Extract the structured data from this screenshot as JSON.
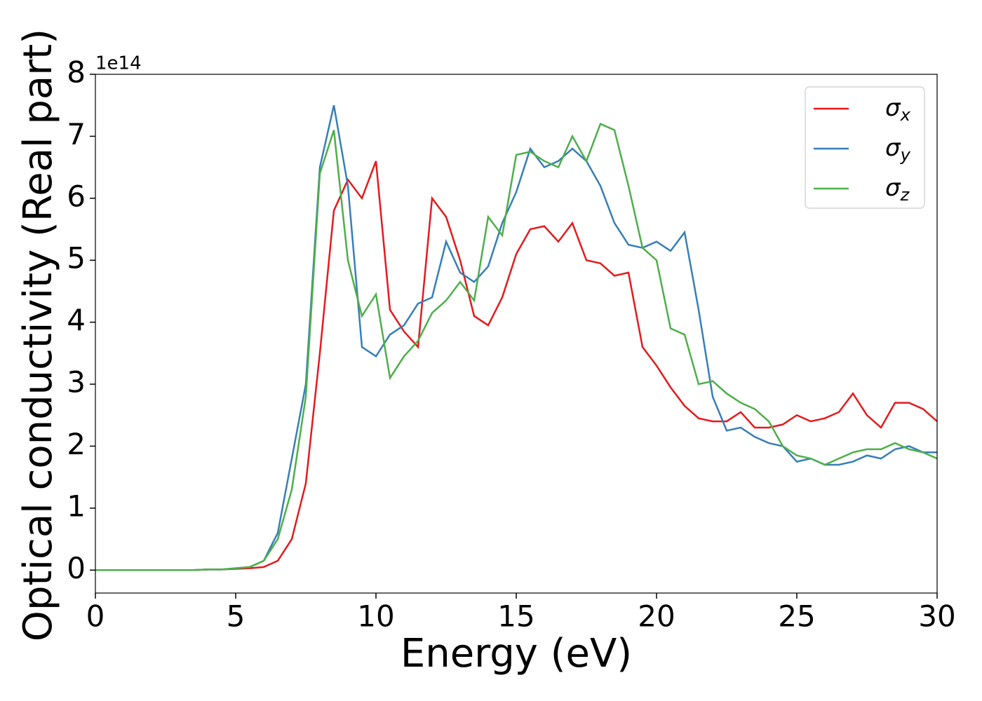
{
  "chart_data": {
    "type": "line",
    "xlabel": "Energy (eV)",
    "ylabel": "Optical conductivity (Real part)",
    "y_offset_label": "1e14",
    "x": [
      0,
      0.5,
      1,
      1.5,
      2,
      2.5,
      3,
      3.5,
      4,
      4.5,
      5,
      5.5,
      6,
      6.5,
      7,
      7.5,
      8,
      8.5,
      9,
      9.5,
      10,
      10.5,
      11,
      11.5,
      12,
      12.5,
      13,
      13.5,
      14,
      14.5,
      15,
      15.5,
      16,
      16.5,
      17,
      17.5,
      18,
      18.5,
      19,
      19.5,
      20,
      20.5,
      21,
      21.5,
      22,
      22.5,
      23,
      23.5,
      24,
      24.5,
      25,
      25.5,
      26,
      26.5,
      27,
      27.5,
      28,
      28.5,
      29,
      29.5,
      30
    ],
    "series": [
      {
        "name": "σx",
        "color": "#e41a1c",
        "values": [
          0,
          0,
          0,
          0,
          0,
          0,
          0,
          0,
          0.01,
          0.01,
          0.02,
          0.03,
          0.05,
          0.15,
          0.5,
          1.4,
          3.5,
          5.8,
          6.3,
          6.0,
          6.6,
          4.2,
          3.85,
          3.6,
          6.0,
          5.7,
          5.0,
          4.1,
          3.95,
          4.4,
          5.1,
          5.5,
          5.55,
          5.3,
          5.6,
          5.0,
          4.95,
          4.75,
          4.8,
          3.6,
          3.3,
          2.95,
          2.65,
          2.45,
          2.4,
          2.4,
          2.55,
          2.3,
          2.3,
          2.35,
          2.5,
          2.4,
          2.45,
          2.55,
          2.85,
          2.5,
          2.3,
          2.7,
          2.7,
          2.6,
          2.4
        ]
      },
      {
        "name": "σy",
        "color": "#377eb8",
        "values": [
          0,
          0,
          0,
          0,
          0,
          0,
          0,
          0,
          0.01,
          0.01,
          0.03,
          0.05,
          0.15,
          0.6,
          1.8,
          3.0,
          6.5,
          7.5,
          6.2,
          3.6,
          3.45,
          3.8,
          3.95,
          4.3,
          4.4,
          5.3,
          4.8,
          4.65,
          4.9,
          5.6,
          6.1,
          6.8,
          6.5,
          6.6,
          6.8,
          6.6,
          6.2,
          5.6,
          5.25,
          5.2,
          5.3,
          5.15,
          5.45,
          4.2,
          2.8,
          2.25,
          2.3,
          2.15,
          2.05,
          2.0,
          1.75,
          1.8,
          1.7,
          1.7,
          1.75,
          1.85,
          1.8,
          1.95,
          2.0,
          1.9,
          1.9
        ]
      },
      {
        "name": "σz",
        "color": "#4daf4a",
        "values": [
          0,
          0,
          0,
          0,
          0,
          0,
          0,
          0,
          0.01,
          0.01,
          0.03,
          0.05,
          0.15,
          0.5,
          1.3,
          2.8,
          6.4,
          7.1,
          5.0,
          4.1,
          4.45,
          3.1,
          3.45,
          3.7,
          4.15,
          4.35,
          4.65,
          4.35,
          5.7,
          5.4,
          6.7,
          6.75,
          6.6,
          6.5,
          7.0,
          6.6,
          7.2,
          7.1,
          6.2,
          5.2,
          5.0,
          3.9,
          3.8,
          3.0,
          3.05,
          2.85,
          2.7,
          2.6,
          2.4,
          2.0,
          1.85,
          1.8,
          1.7,
          1.8,
          1.9,
          1.95,
          1.95,
          2.05,
          1.95,
          1.9,
          1.8
        ]
      }
    ],
    "xlim": [
      0,
      30
    ],
    "xticks": [
      0,
      5,
      10,
      15,
      20,
      25,
      30
    ],
    "ylim": [
      -0.37,
      8
    ],
    "yticks": [
      0,
      1,
      2,
      3,
      4,
      5,
      6,
      7,
      8
    ],
    "legend": "upper right",
    "grid": false
  }
}
